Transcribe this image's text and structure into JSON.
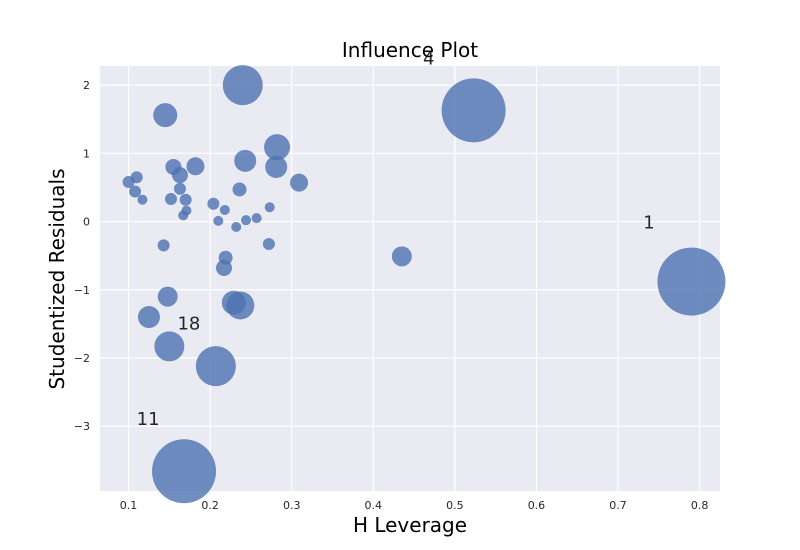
{
  "chart_data": {
    "type": "scatter",
    "title": "Influence Plot",
    "xlabel": "H Leverage",
    "ylabel": "Studentized Residuals",
    "xlim": [
      0.065,
      0.825
    ],
    "ylim": [
      -3.95,
      2.28
    ],
    "xticks": [
      0.1,
      0.2,
      0.3,
      0.4,
      0.5,
      0.6,
      0.7,
      0.8
    ],
    "xtick_labels": [
      "0.1",
      "0.2",
      "0.3",
      "0.4",
      "0.5",
      "0.6",
      "0.7",
      "0.8"
    ],
    "yticks": [
      -3,
      -2,
      -1,
      0,
      1,
      2
    ],
    "ytick_labels": [
      "−3",
      "−2",
      "−1",
      "0",
      "1",
      "2"
    ],
    "grid": true,
    "colors": {
      "background": "#eaeaf2",
      "grid": "#ffffff",
      "marker": "#4c72b0"
    },
    "points": [
      {
        "x": 0.79,
        "y": -0.88,
        "size": 34
      },
      {
        "x": 0.523,
        "y": 1.63,
        "size": 32
      },
      {
        "x": 0.168,
        "y": -3.66,
        "size": 32
      },
      {
        "x": 0.24,
        "y": 2.0,
        "size": 20
      },
      {
        "x": 0.207,
        "y": -2.12,
        "size": 20
      },
      {
        "x": 0.15,
        "y": -1.83,
        "size": 15
      },
      {
        "x": 0.282,
        "y": 1.09,
        "size": 13
      },
      {
        "x": 0.145,
        "y": 1.56,
        "size": 12
      },
      {
        "x": 0.237,
        "y": -1.23,
        "size": 14
      },
      {
        "x": 0.229,
        "y": -1.19,
        "size": 12
      },
      {
        "x": 0.243,
        "y": 0.89,
        "size": 11
      },
      {
        "x": 0.281,
        "y": 0.8,
        "size": 11
      },
      {
        "x": 0.125,
        "y": -1.4,
        "size": 11
      },
      {
        "x": 0.148,
        "y": -1.1,
        "size": 10
      },
      {
        "x": 0.435,
        "y": -0.51,
        "size": 10
      },
      {
        "x": 0.309,
        "y": 0.57,
        "size": 9
      },
      {
        "x": 0.182,
        "y": 0.81,
        "size": 9
      },
      {
        "x": 0.155,
        "y": 0.8,
        "size": 8
      },
      {
        "x": 0.163,
        "y": 0.68,
        "size": 8
      },
      {
        "x": 0.217,
        "y": -0.68,
        "size": 8
      },
      {
        "x": 0.219,
        "y": -0.53,
        "size": 7
      },
      {
        "x": 0.236,
        "y": 0.47,
        "size": 7
      },
      {
        "x": 0.11,
        "y": 0.65,
        "size": 6
      },
      {
        "x": 0.1,
        "y": 0.58,
        "size": 6
      },
      {
        "x": 0.163,
        "y": 0.48,
        "size": 6
      },
      {
        "x": 0.108,
        "y": 0.44,
        "size": 6
      },
      {
        "x": 0.17,
        "y": 0.32,
        "size": 6
      },
      {
        "x": 0.152,
        "y": 0.33,
        "size": 6
      },
      {
        "x": 0.117,
        "y": 0.32,
        "size": 5
      },
      {
        "x": 0.204,
        "y": 0.26,
        "size": 6
      },
      {
        "x": 0.273,
        "y": 0.21,
        "size": 5
      },
      {
        "x": 0.171,
        "y": 0.16,
        "size": 5
      },
      {
        "x": 0.218,
        "y": 0.17,
        "size": 5
      },
      {
        "x": 0.167,
        "y": 0.09,
        "size": 5
      },
      {
        "x": 0.257,
        "y": 0.05,
        "size": 5
      },
      {
        "x": 0.244,
        "y": 0.02,
        "size": 5
      },
      {
        "x": 0.21,
        "y": 0.01,
        "size": 5
      },
      {
        "x": 0.232,
        "y": -0.08,
        "size": 5
      },
      {
        "x": 0.272,
        "y": -0.33,
        "size": 6
      },
      {
        "x": 0.143,
        "y": -0.35,
        "size": 6
      }
    ],
    "annotations": [
      {
        "text": "4",
        "x": 0.468,
        "y": 2.3
      },
      {
        "text": "1",
        "x": 0.738,
        "y": -0.1
      },
      {
        "text": "18",
        "x": 0.174,
        "y": -1.58
      },
      {
        "text": "11",
        "x": 0.124,
        "y": -2.98
      }
    ]
  }
}
